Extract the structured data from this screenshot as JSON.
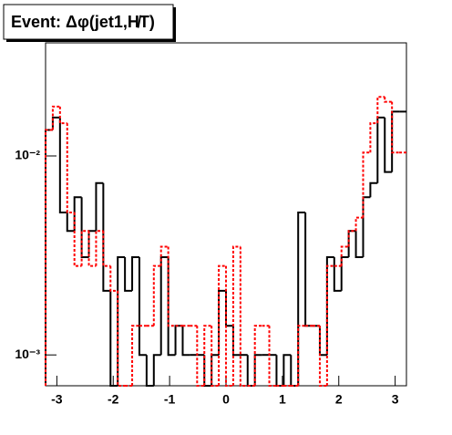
{
  "chart_data": {
    "type": "histogram",
    "title": "Event: Δφ(jet1,H̸T)",
    "log_y": true,
    "bins": [
      -3.2,
      -3.072,
      -2.944,
      -2.816,
      -2.688,
      -2.56,
      -2.432,
      -2.304,
      -2.176,
      -2.048,
      -1.92,
      -1.792,
      -1.664,
      -1.536,
      -1.408,
      -1.28,
      -1.152,
      -1.024,
      -0.896,
      -0.768,
      -0.64,
      -0.512,
      -0.384,
      -0.256,
      -0.128,
      0,
      0.128,
      0.256,
      0.384,
      0.512,
      0.64,
      0.768,
      0.896,
      1.024,
      1.152,
      1.28,
      1.408,
      1.536,
      1.664,
      1.792,
      1.92,
      2.048,
      2.176,
      2.304,
      2.432,
      2.56,
      2.688,
      2.816,
      2.944,
      3.072,
      3.2
    ],
    "series": [
      {
        "color": "#000000",
        "values": [
          0.0135,
          0.0156,
          0.0052,
          0.0042,
          0.0062,
          0.0031,
          0.0042,
          0.0073,
          0.0021,
          0,
          0.0031,
          0.0021,
          0.0031,
          0.001,
          0,
          0.001,
          0.0031,
          0.001,
          0.0014,
          0.001,
          0.001,
          0.001,
          0,
          0.001,
          0.0021,
          0.0014,
          0.001,
          0.001,
          0,
          0.001,
          0.001,
          0.001,
          0,
          0.001,
          0,
          0.0052,
          0.0014,
          0.0014,
          0.001,
          0.0031,
          0.0021,
          0.0031,
          0.0042,
          0.0031,
          0.0062,
          0.0073,
          0.0156,
          0.0083,
          0.0167,
          0.0167
        ]
      },
      {
        "color": "#ff0000",
        "dashed": true,
        "values": [
          0.0135,
          0.0177,
          0.0146,
          0.0052,
          0.0028,
          0.0042,
          0.0028,
          0.0042,
          0.0028,
          0.0021,
          0.0007,
          0.0007,
          0.0014,
          0.0014,
          0.0014,
          0.0028,
          0.0035,
          0.0014,
          0.0014,
          0.0014,
          0.0014,
          0.0007,
          0.0014,
          0.0007,
          0.0028,
          0.0007,
          0.0035,
          0.0007,
          0.0007,
          0.0014,
          0.0014,
          0.0007,
          0.0007,
          0.0007,
          0.0007,
          0.0014,
          0.0014,
          0.0014,
          0.0007,
          0.0028,
          0.0028,
          0.0035,
          0.0042,
          0.0049,
          0.0104,
          0.0146,
          0.0198,
          0.0187,
          0.0104,
          0.0104
        ]
      }
    ],
    "xlim": [
      -3.2,
      3.2
    ],
    "xticks": [
      -3,
      -2,
      -1,
      0,
      1,
      2,
      3
    ],
    "ylim": [
      0.0007,
      0.037
    ],
    "yticks": [
      {
        "value": 0.001,
        "label": "10⁻³"
      },
      {
        "value": 0.01,
        "label": "10⁻²"
      }
    ]
  }
}
